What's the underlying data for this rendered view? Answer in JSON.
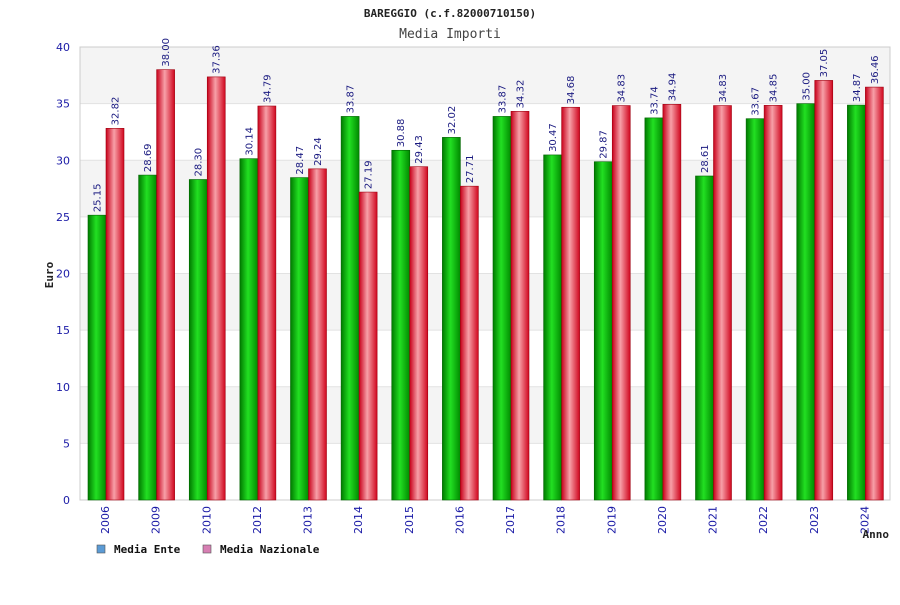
{
  "chart_data": {
    "type": "bar",
    "title": "BAREGGIO (c.f.82000710150)",
    "subtitle": "Media Importi",
    "xlabel": "Anno",
    "ylabel": "Euro",
    "ylim": [
      0,
      40
    ],
    "yticks": [
      0,
      5,
      10,
      15,
      20,
      25,
      30,
      35,
      40
    ],
    "grid": true,
    "legend_position": "bottom-left",
    "categories": [
      "2006",
      "2009",
      "2010",
      "2012",
      "2013",
      "2014",
      "2015",
      "2016",
      "2017",
      "2018",
      "2019",
      "2020",
      "2021",
      "2022",
      "2023",
      "2024"
    ],
    "series": [
      {
        "name": "Media Ente",
        "color": "#00b000",
        "legend_color": "#5b9bd5",
        "values": [
          25.15,
          28.69,
          28.3,
          30.14,
          28.47,
          33.87,
          30.88,
          32.02,
          33.87,
          30.47,
          29.87,
          33.74,
          28.61,
          33.67,
          35.0,
          34.87
        ],
        "labels": [
          "25.15",
          "28.69",
          "28.30",
          "30.14",
          "28.47",
          "33.87",
          "30.88",
          "32.02",
          "33.87",
          "30.47",
          "29.87",
          "33.74",
          "28.61",
          "33.67",
          "35.00",
          "34.87"
        ]
      },
      {
        "name": "Media Nazionale",
        "color": "#e0101e",
        "legend_color": "#d77fb3",
        "values": [
          32.82,
          38.0,
          37.36,
          34.79,
          29.24,
          27.19,
          29.43,
          27.71,
          34.32,
          34.68,
          34.83,
          34.94,
          34.83,
          34.85,
          37.05,
          36.46
        ],
        "labels": [
          "32.82",
          "38.00",
          "37.36",
          "34.79",
          "29.24",
          "27.19",
          "29.43",
          "27.71",
          "34.32",
          "34.68",
          "34.83",
          "34.94",
          "34.83",
          "34.85",
          "37.05",
          "36.46"
        ]
      }
    ]
  }
}
